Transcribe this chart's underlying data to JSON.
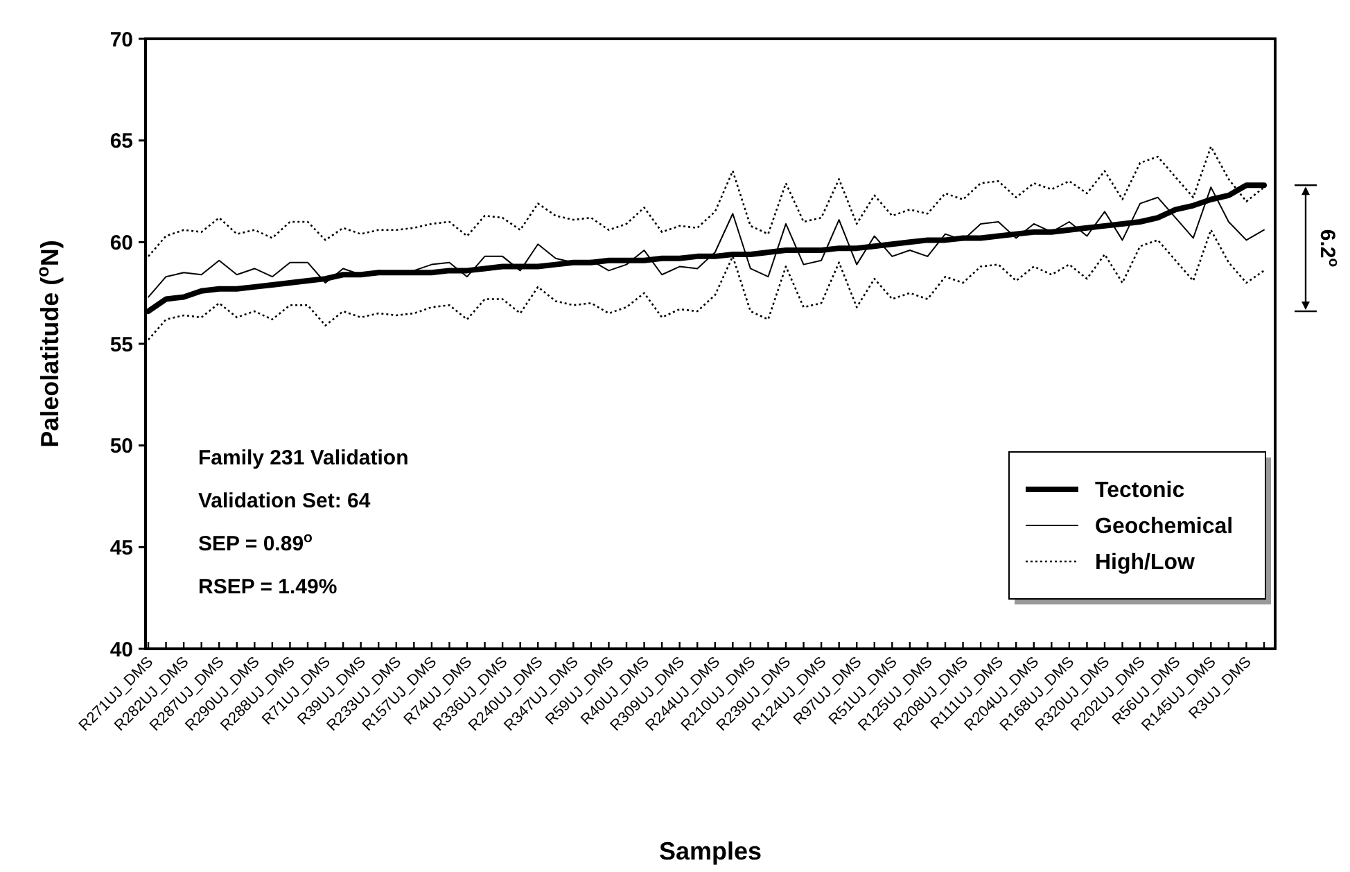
{
  "chart_data": {
    "type": "line",
    "xlabel": "Samples",
    "ylabel": "Paleolatitude ($^{o}$N)",
    "categories": [
      "R271UJ_DMS",
      null,
      "R282UJ_DMS",
      null,
      "R287UJ_DMS",
      null,
      "R290UJ_DMS",
      null,
      "R288UJ_DMS",
      null,
      "R71UJ_DMS",
      null,
      "R39UJ_DMS",
      null,
      "R233UJ_DMS",
      null,
      "R157UJ_DMS",
      null,
      "R74UJ_DMS",
      null,
      "R336UJ_DMS",
      null,
      "R240UJ_DMS",
      null,
      "R347UJ_DMS",
      null,
      "R59UJ_DMS",
      null,
      "R40UJ_DMS",
      null,
      "R309UJ_DMS",
      null,
      "R244UJ_DMS",
      null,
      "R210UJ_DMS",
      null,
      "R239UJ_DMS",
      null,
      "R124UJ_DMS",
      null,
      "R97UJ_DMS",
      null,
      "R51UJ_DMS",
      null,
      "R125UJ_DMS",
      null,
      "R208UJ_DMS",
      null,
      "R111UJ_DMS",
      null,
      "R204UJ_DMS",
      null,
      "R168UJ_DMS",
      null,
      "R320UJ_DMS",
      null,
      "R202UJ_DMS",
      null,
      "R56UJ_DMS",
      null,
      "R145UJ_DMS",
      null,
      "R3UJ_DMS",
      null
    ],
    "series": [
      {
        "name": "Tectonic",
        "color": "#000000",
        "line_style": "solid",
        "values": [
          56.6,
          57.2,
          57.3,
          57.6,
          57.7,
          57.7,
          57.8,
          57.9,
          58.0,
          58.1,
          58.2,
          58.4,
          58.4,
          58.5,
          58.5,
          58.5,
          58.5,
          58.6,
          58.6,
          58.7,
          58.8,
          58.8,
          58.8,
          58.9,
          59.0,
          59.0,
          59.1,
          59.1,
          59.1,
          59.2,
          59.2,
          59.3,
          59.3,
          59.4,
          59.4,
          59.5,
          59.6,
          59.6,
          59.6,
          59.7,
          59.7,
          59.8,
          59.9,
          60.0,
          60.1,
          60.1,
          60.2,
          60.2,
          60.3,
          60.4,
          60.5,
          60.5,
          60.6,
          60.7,
          60.8,
          60.9,
          61.0,
          61.2,
          61.6,
          61.8,
          62.1,
          62.3,
          62.8,
          62.8
        ]
      },
      {
        "name": "Geochemical",
        "color": "#000000",
        "line_style": "solid",
        "values": [
          57.3,
          58.3,
          58.5,
          58.4,
          59.1,
          58.4,
          58.7,
          58.3,
          59.0,
          59.0,
          58.0,
          58.7,
          58.4,
          58.6,
          58.5,
          58.6,
          58.9,
          59.0,
          58.3,
          59.3,
          59.3,
          58.6,
          59.9,
          59.2,
          59.0,
          59.1,
          58.6,
          58.9,
          59.6,
          58.4,
          58.8,
          58.7,
          59.5,
          61.4,
          58.7,
          58.3,
          60.9,
          58.9,
          59.1,
          61.1,
          58.9,
          60.3,
          59.3,
          59.6,
          59.3,
          60.4,
          60.1,
          60.9,
          61.0,
          60.2,
          60.9,
          60.5,
          61.0,
          60.3,
          61.5,
          60.1,
          61.9,
          62.2,
          61.2,
          60.2,
          62.7,
          61.0,
          60.1,
          60.6
        ]
      },
      {
        "name": "High/Low",
        "color": "#000000",
        "line_style": "dotted",
        "values": [
          59.3,
          60.3,
          60.6,
          60.5,
          61.2,
          60.4,
          60.6,
          60.2,
          61.0,
          61.0,
          60.1,
          60.7,
          60.4,
          60.6,
          60.6,
          60.7,
          60.9,
          61.0,
          60.3,
          61.3,
          61.2,
          60.6,
          61.9,
          61.3,
          61.1,
          61.2,
          60.6,
          60.9,
          61.7,
          60.5,
          60.8,
          60.7,
          61.5,
          63.5,
          60.8,
          60.4,
          62.9,
          61.0,
          61.2,
          63.1,
          60.9,
          62.3,
          61.3,
          61.6,
          61.4,
          62.4,
          62.1,
          62.9,
          63.0,
          62.2,
          62.9,
          62.6,
          63.0,
          62.4,
          63.5,
          62.1,
          63.9,
          64.2,
          63.2,
          62.2,
          64.7,
          63.1,
          62.0,
          62.7
        ]
      },
      {
        "color": "#000000",
        "line_style": "dotted",
        "values": [
          55.2,
          56.2,
          56.4,
          56.3,
          57.0,
          56.3,
          56.6,
          56.2,
          56.9,
          56.9,
          55.9,
          56.6,
          56.3,
          56.5,
          56.4,
          56.5,
          56.8,
          56.9,
          56.2,
          57.2,
          57.2,
          56.5,
          57.8,
          57.1,
          56.9,
          57.0,
          56.5,
          56.8,
          57.5,
          56.3,
          56.7,
          56.6,
          57.4,
          59.3,
          56.6,
          56.2,
          58.8,
          56.8,
          57.0,
          59.0,
          56.8,
          58.2,
          57.2,
          57.5,
          57.2,
          58.3,
          58.0,
          58.8,
          58.9,
          58.1,
          58.8,
          58.4,
          58.9,
          58.2,
          59.4,
          58.0,
          59.8,
          60.1,
          59.1,
          58.1,
          60.6,
          59.0,
          58.0,
          58.6
        ]
      }
    ],
    "ylim": [
      40,
      70
    ],
    "yticks": [
      40,
      45,
      50,
      55,
      60,
      65,
      70
    ],
    "grid": false,
    "legend": "bottom right",
    "marker": "none",
    "annotations": [
      "Family 231 Validation",
      "Validation Set: 64",
      "SEP = 0.89$^{o}$",
      "RSEP = 1.49%",
      "6.2$^{o}$"
    ]
  }
}
